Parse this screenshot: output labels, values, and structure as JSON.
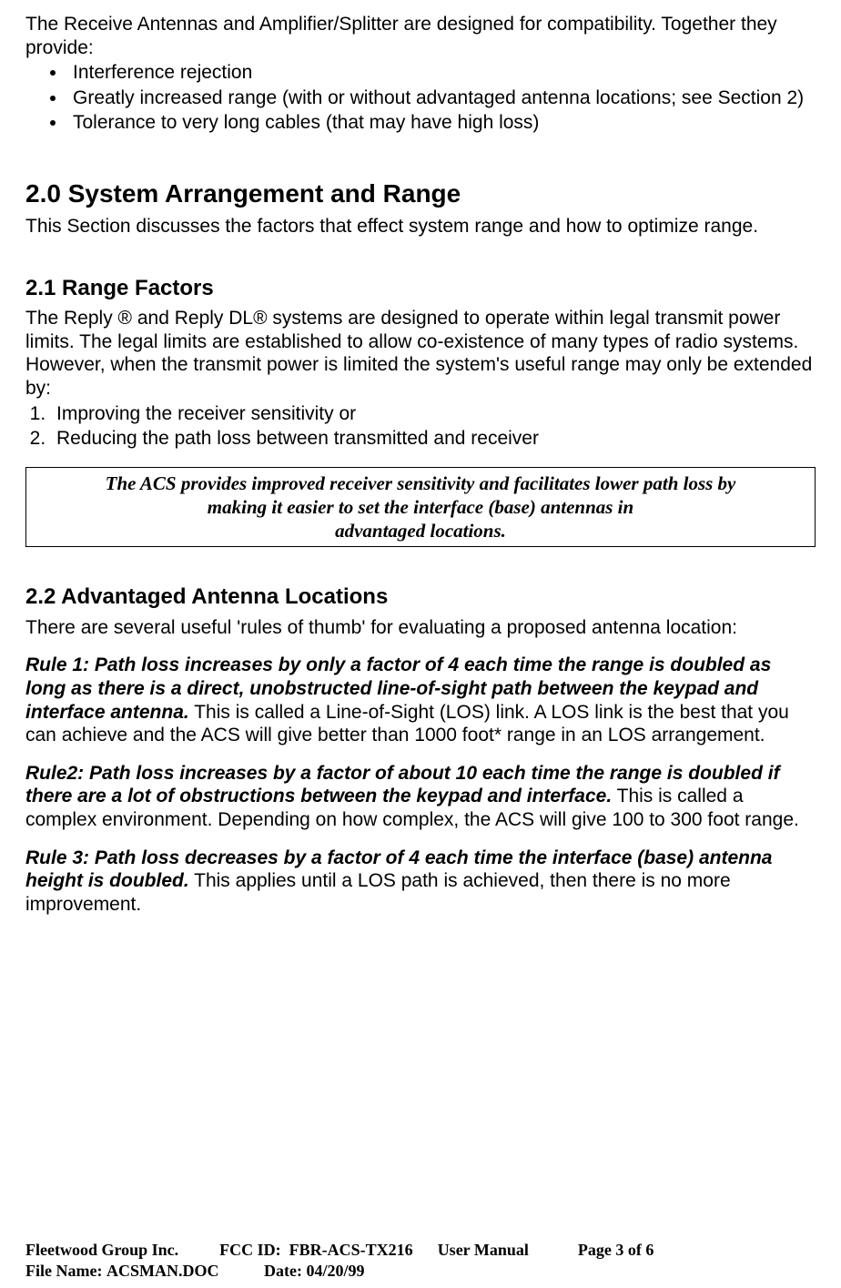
{
  "intro": {
    "lead": "The Receive Antennas and Amplifier/Splitter are designed for compatibility. Together they provide:",
    "bullets": [
      "Interference rejection",
      "Greatly increased range (with or without advantaged antenna locations; see Section 2)",
      "Tolerance to very long cables (that may have high loss)"
    ]
  },
  "section2": {
    "heading": "2.0 System Arrangement and Range",
    "text": "This Section discusses the factors that effect system range and how to optimize range."
  },
  "section2_1": {
    "heading": "2.1 Range Factors",
    "text": "The Reply ® and Reply DL® systems are designed to operate within legal transmit power limits. The legal limits are established to allow co-existence of many types of radio systems. However, when the transmit power is limited the system's useful range may only be extended by:",
    "numlist": [
      "Improving the receiver sensitivity or",
      "Reducing the path loss between transmitted and receiver"
    ],
    "callout_line1": "The ACS provides improved receiver sensitivity and facilitates lower path loss by",
    "callout_line2": "making it easier to set the interface (base) antennas in",
    "callout_line3": "advantaged locations."
  },
  "section2_2": {
    "heading": "2.2 Advantaged Antenna Locations",
    "intro": "There are several useful 'rules of thumb' for evaluating a proposed antenna location:",
    "rules": [
      {
        "lead": "Rule 1: Path loss increases by only a factor of 4 each time the range is doubled as long as there is a direct, unobstructed line-of-sight path between the keypad and interface antenna.",
        "rest": " This is called a Line-of-Sight (LOS) link. A LOS link is the best that you can achieve and the ACS will give better than 1000 foot* range in an LOS arrangement."
      },
      {
        "lead": "Rule2: Path loss increases by a factor of about 10 each time the range is doubled if there are a lot of obstructions between the keypad and interface.",
        "rest": " This is called a complex environment. Depending on how complex, the ACS will give 100 to 300 foot range."
      },
      {
        "lead": "Rule 3: Path loss decreases by a factor of 4 each time the interface (base) antenna height is doubled.",
        "rest": " This applies until a LOS path is achieved, then there is no more improvement."
      }
    ]
  },
  "footer": {
    "company": "Fleetwood Group Inc.",
    "fcc_label": "FCC ID:",
    "fcc_id": "FBR-ACS-TX216",
    "manual": "User Manual",
    "page": "Page 3 of 6",
    "file_label": "File Name:",
    "file_name": "ACSMAN.DOC",
    "date_label": "Date:",
    "date": "04/20/99"
  }
}
